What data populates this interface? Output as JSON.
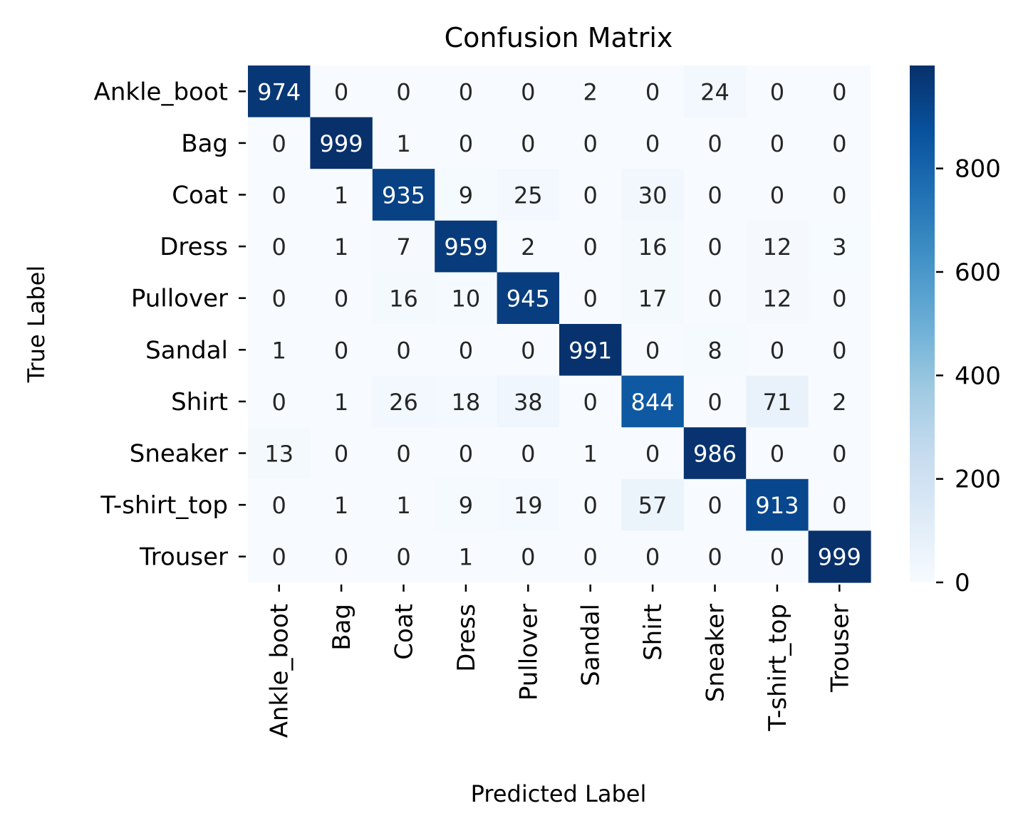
{
  "chart_data": {
    "type": "heatmap",
    "title": "Confusion Matrix",
    "xlabel": "Predicted Label",
    "ylabel": "True Label",
    "x_categories": [
      "Ankle_boot",
      "Bag",
      "Coat",
      "Dress",
      "Pullover",
      "Sandal",
      "Shirt",
      "Sneaker",
      "T-shirt_top",
      "Trouser"
    ],
    "y_categories": [
      "Ankle_boot",
      "Bag",
      "Coat",
      "Dress",
      "Pullover",
      "Sandal",
      "Shirt",
      "Sneaker",
      "T-shirt_top",
      "Trouser"
    ],
    "values": [
      [
        974,
        0,
        0,
        0,
        0,
        2,
        0,
        24,
        0,
        0
      ],
      [
        0,
        999,
        1,
        0,
        0,
        0,
        0,
        0,
        0,
        0
      ],
      [
        0,
        1,
        935,
        9,
        25,
        0,
        30,
        0,
        0,
        0
      ],
      [
        0,
        1,
        7,
        959,
        2,
        0,
        16,
        0,
        12,
        3
      ],
      [
        0,
        0,
        16,
        10,
        945,
        0,
        17,
        0,
        12,
        0
      ],
      [
        1,
        0,
        0,
        0,
        0,
        991,
        0,
        8,
        0,
        0
      ],
      [
        0,
        1,
        26,
        18,
        38,
        0,
        844,
        0,
        71,
        2
      ],
      [
        13,
        0,
        0,
        0,
        0,
        1,
        0,
        986,
        0,
        0
      ],
      [
        0,
        1,
        1,
        9,
        19,
        0,
        57,
        0,
        913,
        0
      ],
      [
        0,
        0,
        0,
        1,
        0,
        0,
        0,
        0,
        0,
        999
      ]
    ],
    "colormap": "Blues",
    "colormap_stops": [
      "#f7fbff",
      "#deebf7",
      "#c6dbef",
      "#9ecae1",
      "#6baed6",
      "#4292c6",
      "#2171b5",
      "#08519c",
      "#08306b"
    ],
    "vmin": 0,
    "vmax": 999,
    "colorbar_ticks": [
      0,
      200,
      400,
      600,
      800
    ],
    "annotation_color_dark": "#262626",
    "annotation_color_light": "#ffffff"
  }
}
